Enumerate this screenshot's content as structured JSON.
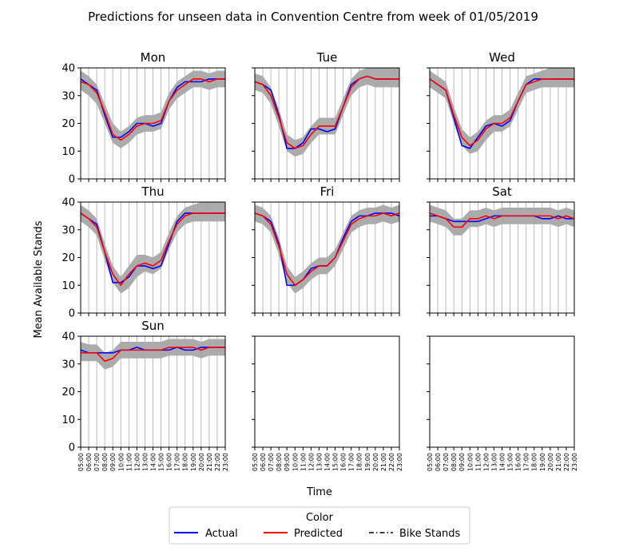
{
  "figure": {
    "title": "Predictions for unseen data in Convention Centre from week of 01/05/2019",
    "xlabel": "Time",
    "ylabel": "Mean Available Stands"
  },
  "legend": {
    "title": "Color",
    "entries": [
      {
        "label": "Actual",
        "color": "#0000ff",
        "style": "solid"
      },
      {
        "label": "Predicted",
        "color": "#ff0000",
        "style": "solid"
      },
      {
        "label": "Bike Stands",
        "color": "#000000",
        "style": "dashdot"
      }
    ]
  },
  "colors": {
    "actual": "#0000ff",
    "predicted": "#ff0000",
    "band": "#a6a6a6",
    "grid": "#b0b0b0"
  },
  "chart_data": {
    "type": "line",
    "x": [
      "05:00",
      "06:00",
      "07:00",
      "08:00",
      "09:00",
      "10:00",
      "11:00",
      "12:00",
      "13:00",
      "14:00",
      "15:00",
      "16:00",
      "17:00",
      "18:00",
      "19:00",
      "20:00",
      "21:00",
      "22:00",
      "23:00"
    ],
    "ylim": [
      0,
      40
    ],
    "yticks": [
      0,
      10,
      20,
      30,
      40
    ],
    "grid": "vertical",
    "legend_position": "bottom-center",
    "panels": [
      {
        "title": "Mon",
        "actual": [
          36,
          34,
          32,
          23,
          15,
          15,
          17,
          20,
          20,
          19,
          20,
          28,
          33,
          35,
          35,
          35,
          36,
          36,
          36
        ],
        "predicted": [
          35,
          34,
          31,
          24,
          16,
          14,
          16,
          19,
          20,
          20,
          21,
          28,
          32,
          34,
          36,
          36,
          35,
          36,
          36
        ],
        "band_lower": [
          32,
          30,
          27,
          20,
          13,
          11,
          13,
          16,
          17,
          17,
          18,
          25,
          29,
          31,
          33,
          33,
          32,
          33,
          33
        ],
        "band_upper": [
          39,
          37,
          34,
          27,
          20,
          17,
          19,
          22,
          23,
          23,
          24,
          31,
          35,
          37,
          39,
          39,
          38,
          39,
          39
        ]
      },
      {
        "title": "Tue",
        "actual": [
          35,
          34,
          32,
          23,
          11,
          11,
          13,
          18,
          18,
          17,
          18,
          26,
          34,
          36,
          37,
          36,
          36,
          36,
          36
        ],
        "predicted": [
          35,
          34,
          30,
          22,
          13,
          11,
          12,
          16,
          19,
          19,
          19,
          26,
          33,
          36,
          37,
          36,
          36,
          36,
          36
        ],
        "band_lower": [
          32,
          31,
          27,
          19,
          10,
          8,
          9,
          13,
          16,
          16,
          16,
          23,
          30,
          33,
          34,
          33,
          33,
          33,
          33
        ],
        "band_upper": [
          38,
          37,
          33,
          25,
          16,
          14,
          15,
          19,
          22,
          22,
          22,
          29,
          36,
          39,
          40,
          40,
          40,
          40,
          40
        ]
      },
      {
        "title": "Wed",
        "actual": [
          36,
          34,
          32,
          22,
          12,
          11,
          15,
          19,
          20,
          19,
          21,
          28,
          34,
          36,
          36,
          36,
          36,
          36,
          36
        ],
        "predicted": [
          36,
          34,
          32,
          23,
          15,
          12,
          14,
          18,
          20,
          20,
          22,
          28,
          34,
          35,
          36,
          36,
          36,
          36,
          36
        ],
        "band_lower": [
          33,
          31,
          29,
          20,
          12,
          9,
          10,
          14,
          17,
          17,
          19,
          25,
          31,
          32,
          33,
          33,
          33,
          33,
          33
        ],
        "band_upper": [
          39,
          37,
          35,
          26,
          18,
          15,
          17,
          21,
          23,
          23,
          25,
          31,
          37,
          38,
          39,
          40,
          40,
          40,
          40
        ]
      },
      {
        "title": "Thu",
        "actual": [
          36,
          34,
          32,
          22,
          11,
          11,
          13,
          17,
          17,
          16,
          17,
          25,
          33,
          36,
          36,
          36,
          36,
          36,
          36
        ],
        "predicted": [
          36,
          34,
          31,
          22,
          14,
          10,
          14,
          17,
          18,
          17,
          19,
          26,
          32,
          35,
          36,
          36,
          36,
          36,
          36
        ],
        "band_lower": [
          33,
          31,
          28,
          19,
          11,
          7,
          9,
          13,
          15,
          14,
          16,
          23,
          29,
          32,
          33,
          33,
          33,
          33,
          33
        ],
        "band_upper": [
          39,
          37,
          34,
          25,
          17,
          13,
          17,
          21,
          21,
          20,
          22,
          29,
          35,
          38,
          39,
          40,
          40,
          40,
          40
        ]
      },
      {
        "title": "Fri",
        "actual": [
          36,
          35,
          33,
          25,
          10,
          10,
          12,
          16,
          17,
          17,
          20,
          27,
          33,
          35,
          35,
          36,
          36,
          36,
          35
        ],
        "predicted": [
          36,
          35,
          32,
          24,
          14,
          10,
          12,
          15,
          17,
          17,
          20,
          26,
          32,
          34,
          35,
          35,
          36,
          35,
          36
        ],
        "band_lower": [
          33,
          32,
          29,
          21,
          11,
          7,
          9,
          12,
          14,
          14,
          17,
          23,
          29,
          31,
          32,
          32,
          33,
          32,
          33
        ],
        "band_upper": [
          39,
          38,
          35,
          27,
          17,
          13,
          15,
          18,
          20,
          20,
          23,
          29,
          35,
          37,
          38,
          38,
          39,
          38,
          39
        ]
      },
      {
        "title": "Sat",
        "actual": [
          35,
          35,
          34,
          33,
          33,
          33,
          33,
          34,
          35,
          35,
          35,
          35,
          35,
          35,
          34,
          34,
          35,
          34,
          34
        ],
        "predicted": [
          36,
          35,
          34,
          31,
          31,
          34,
          34,
          35,
          34,
          35,
          35,
          35,
          35,
          35,
          35,
          35,
          34,
          35,
          34
        ],
        "band_lower": [
          33,
          32,
          31,
          28,
          28,
          31,
          31,
          32,
          31,
          32,
          32,
          32,
          32,
          32,
          32,
          32,
          31,
          32,
          31
        ],
        "band_upper": [
          39,
          38,
          37,
          34,
          34,
          37,
          37,
          38,
          37,
          38,
          38,
          38,
          38,
          38,
          38,
          38,
          37,
          38,
          37
        ]
      },
      {
        "title": "Sun",
        "actual": [
          35,
          34,
          34,
          34,
          34,
          35,
          35,
          36,
          35,
          35,
          35,
          35,
          36,
          35,
          35,
          36,
          36,
          36,
          36
        ],
        "predicted": [
          34,
          34,
          34,
          31,
          32,
          35,
          35,
          35,
          35,
          35,
          35,
          36,
          36,
          36,
          36,
          35,
          36,
          36,
          36
        ],
        "band_lower": [
          31,
          31,
          31,
          28,
          29,
          32,
          32,
          32,
          32,
          32,
          32,
          33,
          33,
          33,
          33,
          32,
          33,
          33,
          33
        ],
        "band_upper": [
          38,
          37,
          37,
          34,
          35,
          38,
          38,
          38,
          38,
          38,
          38,
          39,
          39,
          39,
          39,
          38,
          39,
          39,
          39
        ]
      }
    ]
  }
}
